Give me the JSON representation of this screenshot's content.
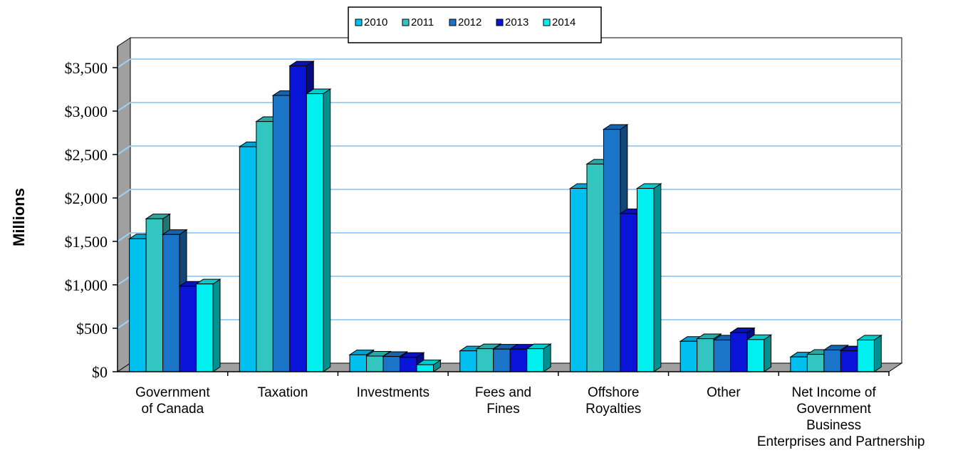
{
  "chart_data": {
    "type": "bar",
    "title": "",
    "xlabel": "",
    "ylabel": "Millions",
    "ylim": [
      0,
      3500
    ],
    "y_ticks": [
      "$0",
      "$500",
      "$1,000",
      "$1,500",
      "$2,000",
      "$2,500",
      "$3,000",
      "$3,500"
    ],
    "y_tick_values": [
      0,
      500,
      1000,
      1500,
      2000,
      2500,
      3000,
      3500
    ],
    "grid": true,
    "three_d": true,
    "legend_position": "top-center",
    "categories": [
      [
        "Government",
        "of Canada"
      ],
      [
        "Taxation"
      ],
      [
        "Investments"
      ],
      [
        "Fees and",
        "Fines"
      ],
      [
        "Offshore",
        "Royalties"
      ],
      [
        "Other"
      ],
      [
        "Net Income of",
        "Government",
        "Business",
        "Enterprises and Partnership"
      ]
    ],
    "series": [
      {
        "name": "2010",
        "color": "#00c0f0",
        "values": [
          1530,
          2590,
          195,
          240,
          2110,
          350,
          170
        ]
      },
      {
        "name": "2011",
        "color": "#33c6c0",
        "values": [
          1760,
          2880,
          180,
          265,
          2390,
          380,
          200
        ]
      },
      {
        "name": "2012",
        "color": "#1a75c8",
        "values": [
          1580,
          3180,
          175,
          260,
          2790,
          365,
          250
        ]
      },
      {
        "name": "2013",
        "color": "#0a14d8",
        "values": [
          985,
          3520,
          165,
          260,
          1820,
          450,
          240
        ]
      },
      {
        "name": "2014",
        "color": "#00f0f0",
        "values": [
          1010,
          3200,
          80,
          265,
          2110,
          370,
          365
        ]
      }
    ],
    "grid_color": "#9fd0f5",
    "wall_color": "#a0a0a0"
  }
}
